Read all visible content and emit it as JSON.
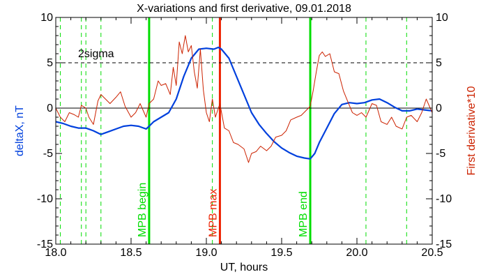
{
  "chart_data": {
    "type": "line",
    "title": "X-variations and first derivative, 09.01.2018",
    "xlabel": "UT, hours",
    "ylabel_left": "deltaX, nT",
    "ylabel_right": "First derivative*10",
    "xlim": [
      18.0,
      20.5
    ],
    "ylim": [
      -15,
      10
    ],
    "ylim_right": [
      -15,
      10
    ],
    "x_ticks": [
      18.0,
      18.5,
      19.0,
      19.5,
      20.0,
      20.5
    ],
    "x_tick_labels": [
      "18.0",
      "18.5",
      "19.0",
      "19.5",
      "20.0",
      "20.5"
    ],
    "y_ticks": [
      10,
      5,
      0,
      -5,
      -10,
      -15
    ],
    "y_tick_labels": [
      "10",
      "5",
      "0",
      "-5",
      "-10",
      "-15"
    ],
    "grid": false,
    "reference_lines": [
      {
        "y": 5,
        "label": "2sigma",
        "style": "dashed",
        "color": "#000000"
      },
      {
        "y": 0,
        "label": "",
        "style": "solid",
        "color": "#000000"
      }
    ],
    "vertical_markers": [
      {
        "x": 18.62,
        "label": "MPB begin",
        "color": "#00dd00",
        "style": "solid"
      },
      {
        "x": 19.09,
        "label": "MPB max",
        "color": "#ee2200",
        "style": "solid"
      },
      {
        "x": 19.69,
        "label": "MPB end",
        "color": "#00dd00",
        "style": "solid"
      }
    ],
    "dashed_markers": {
      "color": "#00dd00",
      "x": [
        18.03,
        18.17,
        18.2,
        18.3,
        19.04,
        20.06,
        20.33
      ]
    },
    "series": [
      {
        "name": "deltaX",
        "axis": "left",
        "color": "#0040dd",
        "x": [
          18.0,
          18.05,
          18.1,
          18.15,
          18.2,
          18.25,
          18.3,
          18.35,
          18.4,
          18.45,
          18.5,
          18.55,
          18.6,
          18.62,
          18.65,
          18.7,
          18.75,
          18.8,
          18.85,
          18.9,
          18.95,
          19.0,
          19.05,
          19.08,
          19.1,
          19.15,
          19.2,
          19.25,
          19.3,
          19.35,
          19.4,
          19.45,
          19.5,
          19.55,
          19.6,
          19.65,
          19.69,
          19.72,
          19.75,
          19.8,
          19.85,
          19.9,
          19.95,
          20.0,
          20.05,
          20.1,
          20.15,
          20.2,
          20.25,
          20.3,
          20.35,
          20.4,
          20.45,
          20.5
        ],
        "values": [
          -1.5,
          -1.7,
          -2.0,
          -2.2,
          -2.2,
          -2.5,
          -2.9,
          -2.6,
          -2.3,
          -2.0,
          -1.9,
          -2.0,
          -2.3,
          -2.0,
          -1.5,
          -1.0,
          -0.5,
          1.0,
          3.5,
          5.5,
          6.5,
          6.6,
          6.5,
          6.7,
          6.5,
          5.5,
          3.5,
          1.5,
          -0.5,
          -1.8,
          -2.8,
          -3.7,
          -4.4,
          -4.9,
          -5.3,
          -5.5,
          -5.6,
          -5.0,
          -3.8,
          -2.2,
          -0.6,
          0.4,
          0.6,
          0.5,
          0.6,
          0.9,
          1.0,
          0.6,
          0.1,
          -0.3,
          -0.3,
          -0.1,
          -0.2,
          -0.3
        ]
      },
      {
        "name": "First derivative*10",
        "axis": "right",
        "color": "#cc2200",
        "x": [
          18.0,
          18.03,
          18.06,
          18.09,
          18.12,
          18.15,
          18.17,
          18.2,
          18.22,
          18.25,
          18.28,
          18.3,
          18.33,
          18.36,
          18.4,
          18.43,
          18.46,
          18.5,
          18.53,
          18.56,
          18.6,
          18.62,
          18.65,
          18.68,
          18.7,
          18.73,
          18.76,
          18.78,
          18.8,
          18.82,
          18.84,
          18.86,
          18.88,
          18.9,
          18.92,
          18.94,
          18.96,
          18.98,
          19.0,
          19.02,
          19.04,
          19.06,
          19.09,
          19.12,
          19.15,
          19.18,
          19.21,
          19.25,
          19.28,
          19.3,
          19.33,
          19.36,
          19.4,
          19.43,
          19.46,
          19.5,
          19.53,
          19.56,
          19.6,
          19.63,
          19.66,
          19.69,
          19.71,
          19.73,
          19.75,
          19.77,
          19.79,
          19.82,
          19.85,
          19.88,
          19.91,
          19.94,
          19.97,
          20.0,
          20.03,
          20.06,
          20.1,
          20.13,
          20.16,
          20.2,
          20.23,
          20.26,
          20.3,
          20.33,
          20.36,
          20.4,
          20.43,
          20.46,
          20.5
        ],
        "values": [
          0.0,
          -1.0,
          -1.5,
          -0.5,
          -0.7,
          -1.0,
          0.3,
          0.0,
          -1.0,
          -1.8,
          0.8,
          1.5,
          1.0,
          0.5,
          1.2,
          1.8,
          0.2,
          -1.0,
          -0.5,
          0.5,
          -1.0,
          0.5,
          1.0,
          3.0,
          2.5,
          2.7,
          1.5,
          4.5,
          2.5,
          7.3,
          6.0,
          8.0,
          6.2,
          6.9,
          4.0,
          2.2,
          6.5,
          2.0,
          -0.5,
          -1.5,
          1.0,
          -1.0,
          0.5,
          -2.2,
          -2.5,
          -3.8,
          -4.0,
          -4.5,
          -6.0,
          -5.0,
          -4.8,
          -4.2,
          -4.7,
          -4.2,
          -3.2,
          -3.0,
          -2.5,
          -1.3,
          -1.0,
          -0.8,
          -0.3,
          0.2,
          2.0,
          4.0,
          5.8,
          6.2,
          5.7,
          6.0,
          4.0,
          3.8,
          1.9,
          0.7,
          -0.5,
          -0.8,
          -0.5,
          -1.0,
          0.5,
          0.3,
          -1.5,
          -1.8,
          -1.0,
          -2.0,
          -2.3,
          -1.0,
          -0.8,
          -1.5,
          -0.5,
          1.0,
          -0.5
        ]
      }
    ]
  }
}
